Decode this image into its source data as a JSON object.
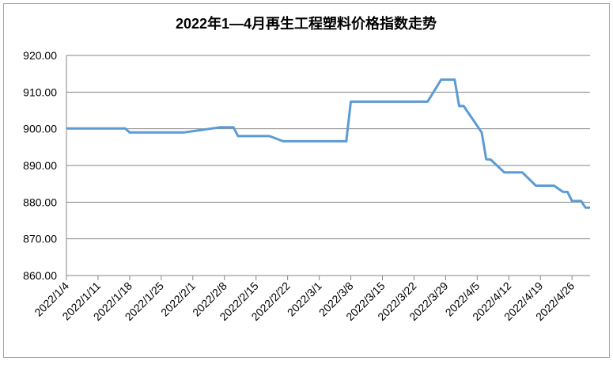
{
  "chart_data": {
    "type": "line",
    "title": "2022年1—4月再生工程塑料价格指数走势",
    "x": [
      "2022/1/4",
      "2022/1/17",
      "2022/1/18",
      "2022/1/30",
      "2022/2/7",
      "2022/2/10",
      "2022/2/11",
      "2022/2/18",
      "2022/2/21",
      "2022/3/7",
      "2022/3/8",
      "2022/3/25",
      "2022/3/28",
      "2022/3/31",
      "2022/4/1",
      "2022/4/2",
      "2022/4/6",
      "2022/4/7",
      "2022/4/8",
      "2022/4/11",
      "2022/4/15",
      "2022/4/18",
      "2022/4/22",
      "2022/4/24",
      "2022/4/25",
      "2022/4/26",
      "2022/4/28",
      "2022/4/29",
      "2022/4/30"
    ],
    "series": [
      {
        "color": "#5b9bd5",
        "values": [
          900.1,
          900.1,
          899.0,
          899.0,
          900.4,
          900.4,
          898.0,
          898.0,
          896.6,
          896.6,
          907.4,
          907.4,
          913.4,
          913.4,
          906.2,
          906.2,
          899.0,
          891.7,
          891.6,
          888.1,
          888.1,
          884.5,
          884.5,
          882.8,
          882.8,
          880.3,
          880.3,
          878.5,
          878.5
        ]
      }
    ],
    "xlim": [
      "2022/1/4",
      "2022/4/30"
    ],
    "xticks": [
      "2022/1/4",
      "2022/1/11",
      "2022/1/18",
      "2022/1/25",
      "2022/2/1",
      "2022/2/8",
      "2022/2/15",
      "2022/2/22",
      "2022/3/1",
      "2022/3/8",
      "2022/3/15",
      "2022/3/22",
      "2022/3/29",
      "2022/4/5",
      "2022/4/12",
      "2022/4/19",
      "2022/4/26"
    ],
    "ylim": [
      860,
      920
    ],
    "yticks": [
      {
        "value": 860,
        "label": "860.00"
      },
      {
        "value": 870,
        "label": "870.00"
      },
      {
        "value": 880,
        "label": "880.00"
      },
      {
        "value": 890,
        "label": "890.00"
      },
      {
        "value": 900,
        "label": "900.00"
      },
      {
        "value": 910,
        "label": "910.00"
      },
      {
        "value": 920,
        "label": "920.00"
      }
    ],
    "grid": true
  }
}
